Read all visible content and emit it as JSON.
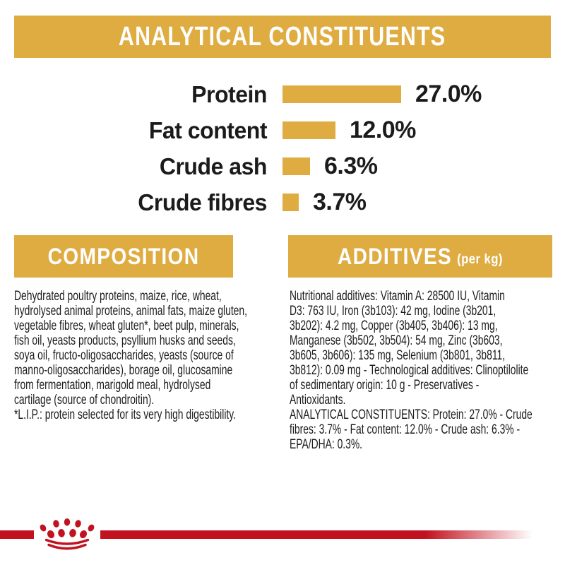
{
  "page": {
    "background": "#ffffff",
    "accent_gold": "#DFAC42",
    "brand_red": "#C3121F",
    "text_color": "#1c1c1c"
  },
  "header": {
    "title": "ANALYTICAL CONSTITUENTS"
  },
  "chart_data": {
    "type": "bar",
    "orientation": "horizontal",
    "title": "ANALYTICAL CONSTITUENTS",
    "categories": [
      "Protein",
      "Fat content",
      "Crude ash",
      "Crude fibres"
    ],
    "values": [
      27.0,
      12.0,
      6.3,
      3.7
    ],
    "value_labels": [
      "27.0%",
      "12.0%",
      "6.3%",
      "3.7%"
    ],
    "unit": "%",
    "xlim": [
      0,
      30
    ],
    "grid": false,
    "legend": "none",
    "bar_color": "#DFAC42"
  },
  "composition": {
    "title": "COMPOSITION",
    "lines": [
      "Dehydrated poultry proteins, maize, rice, wheat,",
      "hydrolysed animal proteins, animal fats, maize gluten,",
      "vegetable fibres, wheat gluten*, beet pulp, minerals,",
      "fish oil, yeasts products, psyllium husks and seeds,",
      "soya oil, fructo-oligosaccharides, yeasts (source of",
      "manno-oligosaccharides), borage oil, glucosamine",
      "from fermentation, marigold meal, hydrolysed",
      "cartilage (source of chondroitin).",
      "*L.I.P.: protein selected for its very high digestibility."
    ]
  },
  "additives": {
    "title": "ADDITIVES",
    "title_suffix": "(per kg)",
    "lines": [
      "Nutritional additives: Vitamin A: 28500 IU, Vitamin",
      "D3: 763 IU, Iron (3b103): 42 mg, Iodine (3b201,",
      "3b202): 4.2 mg, Copper (3b405, 3b406): 13 mg,",
      "Manganese (3b502, 3b504): 54 mg, Zinc (3b603,",
      "3b605, 3b606): 135 mg, Selenium (3b801, 3b811,",
      "3b812): 0.09 mg - Technological additives: Clinoptilolite",
      "of sedimentary origin: 10 g - Preservatives -",
      "Antioxidants.",
      "ANALYTICAL CONSTITUENTS: Protein: 27.0% - Crude",
      "fibres: 3.7% - Fat content: 12.0% - Crude ash: 6.3% -",
      "EPA/DHA: 0.3%."
    ]
  },
  "footer": {
    "logo": "royal-canin-crown"
  }
}
